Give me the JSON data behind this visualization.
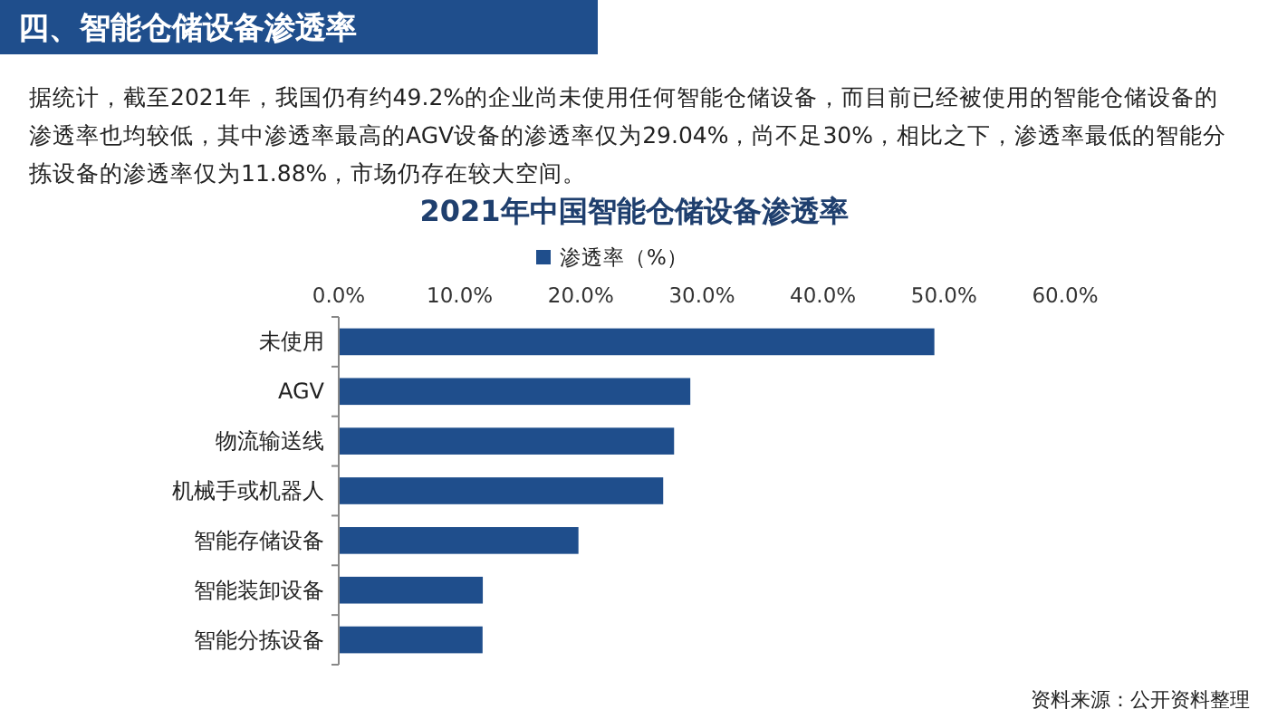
{
  "chart_data": {
    "type": "bar",
    "orientation": "horizontal",
    "title": "2021年中国智能仓储设备渗透率",
    "subtitle": "据统计，截至2021年，我国仍有约49.2%的企业尚未使用任何智能仓储设备，而目前已经被使用的智能仓储设备的渗透率也均较低，其中渗透率最高的AGV设备的渗透率仅为29.04%，尚不足30%，相比之下，渗透率最低的智能分拣设备的渗透率仅为11.88%，市场仍存在较大空间。",
    "annotations": [
      "四、智能仓储设备渗透率",
      "资料来源：公开资料整理"
    ],
    "categories": [
      "未使用",
      "AGV",
      "物流输送线",
      "机械手或机器人",
      "智能存储设备",
      "智能装卸设备",
      "智能分拣设备"
    ],
    "series": [
      {
        "name": "渗透率（%）",
        "color": "#1f4e8c",
        "values": [
          49.2,
          29.04,
          27.7,
          26.8,
          19.8,
          11.9,
          11.88
        ]
      }
    ],
    "xlim": [
      0,
      60
    ],
    "xticks": [
      {
        "value": 0,
        "label": "0.0%"
      },
      {
        "value": 10,
        "label": "10.0%"
      },
      {
        "value": 20,
        "label": "20.0%"
      },
      {
        "value": 30,
        "label": "30.0%"
      },
      {
        "value": 40,
        "label": "40.0%"
      },
      {
        "value": 50,
        "label": "50.0%"
      },
      {
        "value": 60,
        "label": "60.0%"
      }
    ],
    "legend": "top",
    "grid": false
  }
}
